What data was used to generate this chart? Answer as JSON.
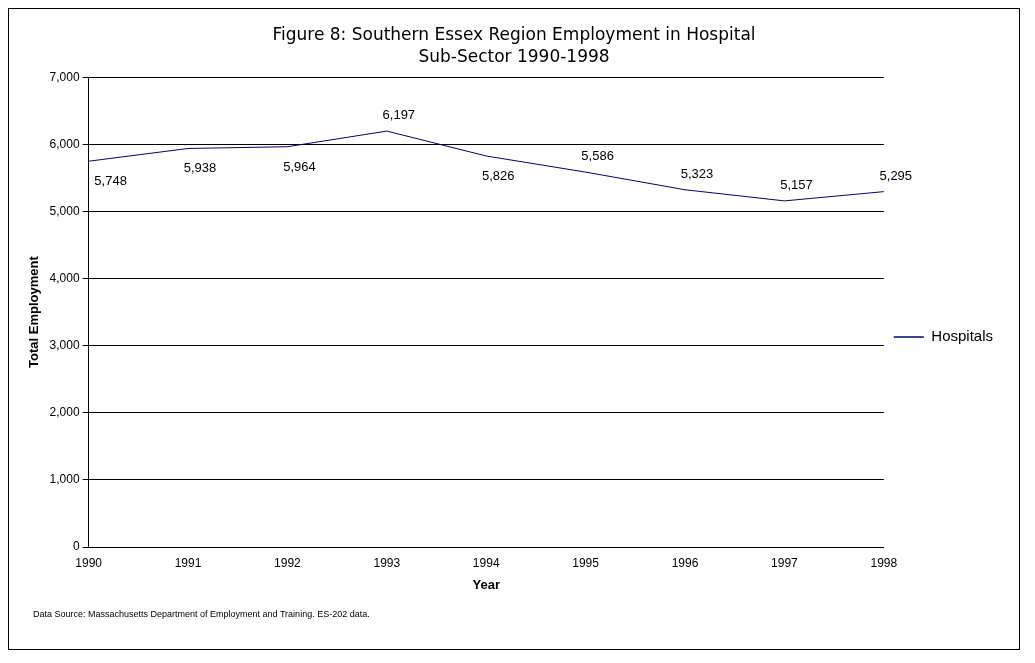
{
  "chart_data": {
    "type": "line",
    "title": "Figure 8: Southern Essex Region Employment in Hospital Sub-Sector 1990-1998",
    "xlabel": "Year",
    "ylabel": "Total Employment",
    "categories": [
      "1990",
      "1991",
      "1992",
      "1993",
      "1994",
      "1995",
      "1996",
      "1997",
      "1998"
    ],
    "series": [
      {
        "name": "Hospitals",
        "color": "#000080",
        "values": [
          5748,
          5938,
          5964,
          6197,
          5826,
          5586,
          5323,
          5157,
          5295
        ],
        "value_labels": [
          "5,748",
          "5,938",
          "5,964",
          "6,197",
          "5,826",
          "5,586",
          "5,323",
          "5,157",
          "5,295"
        ]
      }
    ],
    "ylim": [
      0,
      7000
    ],
    "yticks": [
      {
        "value": 0,
        "label": "0"
      },
      {
        "value": 1000,
        "label": "1,000"
      },
      {
        "value": 2000,
        "label": "2,000"
      },
      {
        "value": 3000,
        "label": "3,000"
      },
      {
        "value": 4000,
        "label": "4,000"
      },
      {
        "value": 5000,
        "label": "5,000"
      },
      {
        "value": 6000,
        "label": "6,000"
      },
      {
        "value": 7000,
        "label": "7,000"
      }
    ],
    "grid": "y",
    "legend": "right",
    "marker": "none",
    "line_style": "solid",
    "annotations": [
      "Data Source: Massachusetts Department of Employment and Training. ES-202 data."
    ]
  }
}
